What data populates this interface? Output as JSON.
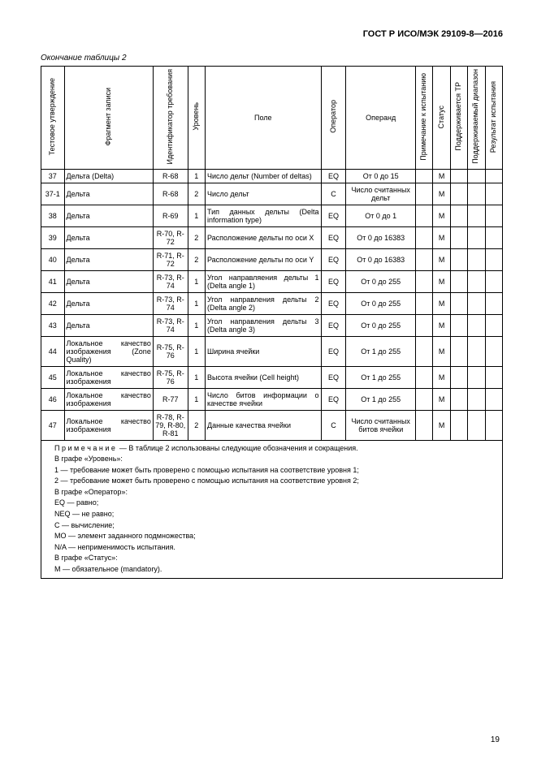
{
  "header": {
    "standard": "ГОСТ Р ИСО/МЭК 29109-8—2016",
    "caption": "Окончание таблицы 2"
  },
  "columns": {
    "h1": "Тестовое утверждение",
    "h2": "Фрагмент записи",
    "h3": "Идентификатор требования",
    "h4": "Уровень",
    "h5": "Поле",
    "h6": "Оператор",
    "h7": "Операнд",
    "h8": "Примечание к испытанию",
    "h9": "Статус",
    "h10": "Поддерживается ТР",
    "h11": "Поддерживаемый диапазон",
    "h12": "Результат испытания"
  },
  "rows": [
    {
      "n": "37",
      "frag": "Дельта (Delta)",
      "req": "R-68",
      "lvl": "1",
      "field": "Число дельт (Number of deltas)",
      "op": "EQ",
      "operand": "От 0 до 15",
      "status": "M"
    },
    {
      "n": "37-1",
      "frag": "Дельта",
      "req": "R-68",
      "lvl": "2",
      "field": "Число дельт",
      "op": "C",
      "operand": "Число считанных дельт",
      "status": "M"
    },
    {
      "n": "38",
      "frag": "Дельта",
      "req": "R-69",
      "lvl": "1",
      "field": "Тип данных дельты (Delta information type)",
      "op": "EQ",
      "operand": "От 0 до 1",
      "status": "M"
    },
    {
      "n": "39",
      "frag": "Дельта",
      "req": "R-70, R-72",
      "lvl": "2",
      "field": "Расположение дельты по оси X",
      "op": "EQ",
      "operand": "От 0 до 16383",
      "status": "M"
    },
    {
      "n": "40",
      "frag": "Дельта",
      "req": "R-71, R-72",
      "lvl": "2",
      "field": "Расположение дельты по оси Y",
      "op": "EQ",
      "operand": "От 0 до 16383",
      "status": "M"
    },
    {
      "n": "41",
      "frag": "Дельта",
      "req": "R-73, R-74",
      "lvl": "1",
      "field": "Угол направляения дельты 1 (Delta angle 1)",
      "op": "EQ",
      "operand": "От 0 до 255",
      "status": "M"
    },
    {
      "n": "42",
      "frag": "Дельта",
      "req": "R-73, R-74",
      "lvl": "1",
      "field": "Угол направления дельты 2 (Delta angle 2)",
      "op": "EQ",
      "operand": "От 0 до 255",
      "status": "M"
    },
    {
      "n": "43",
      "frag": "Дельта",
      "req": "R-73, R-74",
      "lvl": "1",
      "field": "Угол направления дельты 3 (Delta angle 3)",
      "op": "EQ",
      "operand": "От 0 до 255",
      "status": "M"
    },
    {
      "n": "44",
      "frag": "Локальное качество изображения (Zone Quality)",
      "req": "R-75, R-76",
      "lvl": "1",
      "field": "Ширина ячейки",
      "op": "EQ",
      "operand": "От 1 до 255",
      "status": "M"
    },
    {
      "n": "45",
      "frag": "Локальное качество изображения",
      "req": "R-75, R-76",
      "lvl": "1",
      "field": "Высота ячейки (Cell height)",
      "op": "EQ",
      "operand": "От 1 до 255",
      "status": "M"
    },
    {
      "n": "46",
      "frag": "Локальное качество изображения",
      "req": "R-77",
      "lvl": "1",
      "field": "Число битов информации о качестве ячейки",
      "op": "EQ",
      "operand": "От 1 до 255",
      "status": "M"
    },
    {
      "n": "47",
      "frag": "Локальное качество изображения",
      "req": "R-78, R-79, R-80, R-81",
      "lvl": "2",
      "field": "Данные качества ячейки",
      "op": "C",
      "operand": "Число считанных битов ячейки",
      "status": "M"
    }
  ],
  "notes": {
    "l0a": "П р и м е ч а н и е",
    "l0b": "— В таблице 2 использованы следующие обозначения и сокращения.",
    "l1": "В графе «Уровень»:",
    "l2": "1 — требование может быть проверено с помощью испытания на соответствие уровня 1;",
    "l3": "2 — требование может быть проверено с помощью испытания на соответствие уровня 2;",
    "l4": "В графе «Оператор»:",
    "l5": "EQ — равно;",
    "l6": "NEQ — не равно;",
    "l7": "C — вычисление;",
    "l8": "MO — элемент заданного подмножества;",
    "l9": "N/A — неприменимость испытания.",
    "l10": "В графе «Статус»:",
    "l11": "M — обязательное (mandatory)."
  },
  "pageNumber": "19"
}
